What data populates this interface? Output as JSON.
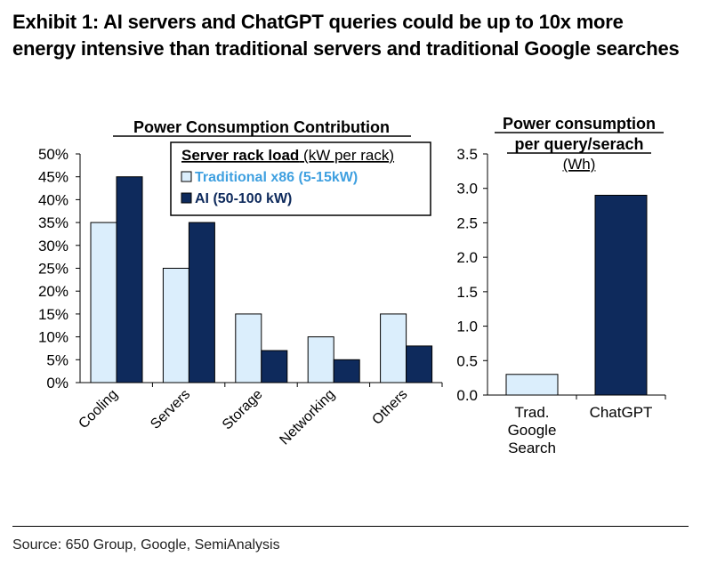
{
  "title": "Exhibit 1: AI servers and ChatGPT queries could be up to 10x more energy intensive than traditional servers and traditional Google searches",
  "source": "Source: 650 Group, Google, SemiAnalysis",
  "colors": {
    "traditional": "#dbeefc",
    "ai": "#0e2a5c",
    "legend_traditional_text": "#3fa0e0",
    "legend_ai_text": "#0e2a5c"
  },
  "chart_data": [
    {
      "type": "bar",
      "title": "Power Consumption Contribution",
      "legend_title": "Server rack load",
      "legend_title_unit": "(kW per rack)",
      "categories": [
        "Cooling",
        "Servers",
        "Storage",
        "Networking",
        "Others"
      ],
      "series": [
        {
          "name": "Traditional x86 (5-15kW)",
          "values": [
            35,
            25,
            15,
            10,
            15
          ]
        },
        {
          "name": "AI (50-100 kW)",
          "values": [
            45,
            35,
            7,
            5,
            8
          ]
        }
      ],
      "ylim": [
        0,
        50
      ],
      "yticks": [
        "0%",
        "5%",
        "10%",
        "15%",
        "20%",
        "25%",
        "30%",
        "35%",
        "40%",
        "45%",
        "50%"
      ],
      "legend_position": "top-right"
    },
    {
      "type": "bar",
      "title_line1": "Power consumption",
      "title_line2": "per query/serach",
      "title_unit": "(Wh)",
      "categories": [
        "Trad. Google Search",
        "ChatGPT"
      ],
      "category_lines": [
        [
          "Trad.",
          "Google",
          "Search"
        ],
        [
          "ChatGPT"
        ]
      ],
      "values": [
        0.3,
        2.9
      ],
      "ylim": [
        0,
        3.5
      ],
      "yticks": [
        "0.0",
        "0.5",
        "1.0",
        "1.5",
        "2.0",
        "2.5",
        "3.0",
        "3.5"
      ]
    }
  ]
}
